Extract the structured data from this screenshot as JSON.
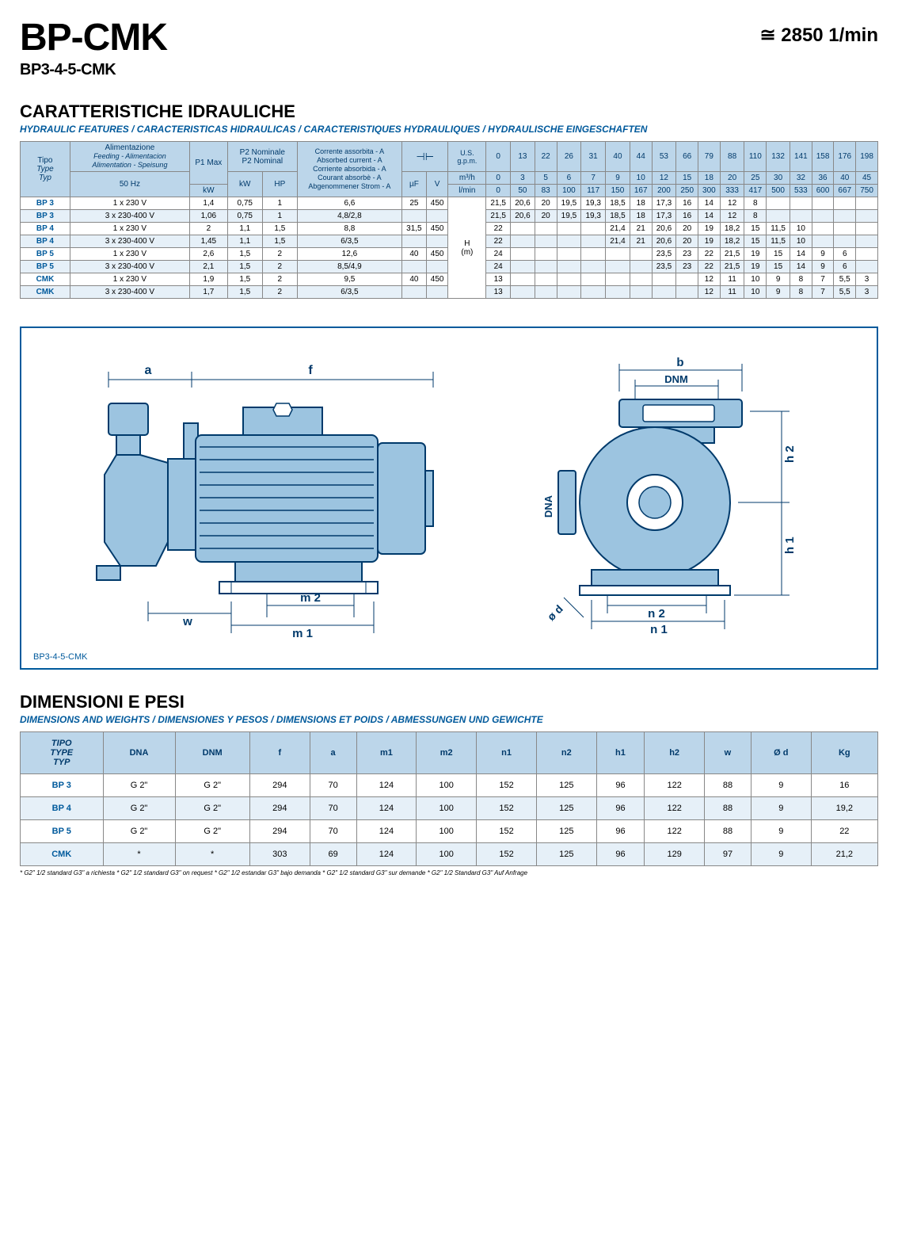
{
  "header": {
    "title": "BP-CMK",
    "subtitle": "BP3-4-5-CMK",
    "rpm": "≅ 2850 1/min"
  },
  "section1": {
    "title": "CARATTERISTICHE IDRAULICHE",
    "subtitle": "HYDRAULIC FEATURES / CARACTERISTICAS HIDRAULICAS / CARACTERISTIQUES HYDRAULIQUES / HYDRAULISCHE EINGESCHAFTEN"
  },
  "hydraulic": {
    "header_labels": {
      "tipo": "Tipo",
      "type_it": "Type",
      "typ": "Typ",
      "alim": "Alimentazione",
      "alim_lines": "Feeding - Alimentacion\nAlimentation - Speisung",
      "hz": "50 Hz",
      "p1max": "P1 Max",
      "p2nom": "P2 Nominale",
      "p2nom2": "P2 Nominal",
      "kw": "kW",
      "kw2": "kW",
      "hp": "HP",
      "current": "Corrente assorbita - A\nAbsorbed current - A\nCorriente absorbida - A\nCourant absorbè - A\nAbgenommener Strom - A",
      "uf": "µF",
      "v": "V",
      "cap_sym": "⊣⊢",
      "usgpm": "U.S. g.p.m.",
      "m3h": "m³/h",
      "lmin": "l/min",
      "h": "H\n(m)"
    },
    "flow_usgpm": [
      "0",
      "13",
      "22",
      "26",
      "31",
      "40",
      "44",
      "53",
      "66",
      "79",
      "88",
      "110",
      "132",
      "141",
      "158",
      "176",
      "198"
    ],
    "flow_m3h": [
      "0",
      "3",
      "5",
      "6",
      "7",
      "9",
      "10",
      "12",
      "15",
      "18",
      "20",
      "25",
      "30",
      "32",
      "36",
      "40",
      "45"
    ],
    "flow_lmin": [
      "0",
      "50",
      "83",
      "100",
      "117",
      "150",
      "167",
      "200",
      "250",
      "300",
      "333",
      "417",
      "500",
      "533",
      "600",
      "667",
      "750"
    ],
    "rows": [
      {
        "type": "BP 3",
        "feed": "1 x 230 V",
        "p1": "1,4",
        "kw": "0,75",
        "hp": "1",
        "a": "6,6",
        "uf": "25",
        "v": "450",
        "h": [
          "21,5",
          "20,6",
          "20",
          "19,5",
          "19,3",
          "18,5",
          "18",
          "17,3",
          "16",
          "14",
          "12",
          "8",
          "",
          "",
          "",
          "",
          ""
        ]
      },
      {
        "type": "BP 3",
        "feed": "3 x 230-400 V",
        "p1": "1,06",
        "kw": "0,75",
        "hp": "1",
        "a": "4,8/2,8",
        "uf": "",
        "v": "",
        "h": [
          "21,5",
          "20,6",
          "20",
          "19,5",
          "19,3",
          "18,5",
          "18",
          "17,3",
          "16",
          "14",
          "12",
          "8",
          "",
          "",
          "",
          "",
          ""
        ]
      },
      {
        "type": "BP 4",
        "feed": "1 x 230 V",
        "p1": "2",
        "kw": "1,1",
        "hp": "1,5",
        "a": "8,8",
        "uf": "31,5",
        "v": "450",
        "h": [
          "22",
          "",
          "",
          "",
          "",
          "21,4",
          "21",
          "20,6",
          "20",
          "19",
          "18,2",
          "15",
          "11,5",
          "10",
          "",
          "",
          ""
        ]
      },
      {
        "type": "BP 4",
        "feed": "3 x 230-400 V",
        "p1": "1,45",
        "kw": "1,1",
        "hp": "1,5",
        "a": "6/3,5",
        "uf": "",
        "v": "",
        "h": [
          "22",
          "",
          "",
          "",
          "",
          "21,4",
          "21",
          "20,6",
          "20",
          "19",
          "18,2",
          "15",
          "11,5",
          "10",
          "",
          "",
          ""
        ]
      },
      {
        "type": "BP 5",
        "feed": "1 x 230 V",
        "p1": "2,6",
        "kw": "1,5",
        "hp": "2",
        "a": "12,6",
        "uf": "40",
        "v": "450",
        "h": [
          "24",
          "",
          "",
          "",
          "",
          "",
          "",
          "23,5",
          "23",
          "22",
          "21,5",
          "19",
          "15",
          "14",
          "9",
          "6",
          ""
        ]
      },
      {
        "type": "BP 5",
        "feed": "3 x 230-400 V",
        "p1": "2,1",
        "kw": "1,5",
        "hp": "2",
        "a": "8,5/4,9",
        "uf": "",
        "v": "",
        "h": [
          "24",
          "",
          "",
          "",
          "",
          "",
          "",
          "23,5",
          "23",
          "22",
          "21,5",
          "19",
          "15",
          "14",
          "9",
          "6",
          ""
        ]
      },
      {
        "type": "CMK",
        "feed": "1 x 230 V",
        "p1": "1,9",
        "kw": "1,5",
        "hp": "2",
        "a": "9,5",
        "uf": "40",
        "v": "450",
        "h": [
          "13",
          "",
          "",
          "",
          "",
          "",
          "",
          "",
          "",
          "12",
          "11",
          "10",
          "9",
          "8",
          "7",
          "5,5",
          "3"
        ]
      },
      {
        "type": "CMK",
        "feed": "3 x 230-400 V",
        "p1": "1,7",
        "kw": "1,5",
        "hp": "2",
        "a": "6/3,5",
        "uf": "",
        "v": "",
        "h": [
          "13",
          "",
          "",
          "",
          "",
          "",
          "",
          "",
          "",
          "12",
          "11",
          "10",
          "9",
          "8",
          "7",
          "5,5",
          "3"
        ]
      }
    ]
  },
  "diagram": {
    "caption": "BP3-4-5-CMK",
    "labels": {
      "a": "a",
      "f": "f",
      "w": "w",
      "m1": "m 1",
      "m2": "m 2",
      "b": "b",
      "dnm": "DNM",
      "dna": "DNA",
      "h1": "h 1",
      "h2": "h 2",
      "n1": "n 1",
      "n2": "n 2",
      "od": "ø d"
    },
    "colors": {
      "stroke": "#003a6b",
      "fill": "#9cc4e0"
    }
  },
  "section2": {
    "title": "DIMENSIONI E PESI",
    "subtitle": "DIMENSIONS AND WEIGHTS / DIMENSIONES Y PESOS / DIMENSIONS ET POIDS / ABMESSUNGEN UND GEWICHTE"
  },
  "dimensions": {
    "columns": [
      "TIPO\nTYPE\nTYP",
      "DNA",
      "DNM",
      "f",
      "a",
      "m1",
      "m2",
      "n1",
      "n2",
      "h1",
      "h2",
      "w",
      "Ø d",
      "Kg"
    ],
    "rows": [
      [
        "BP 3",
        "G 2\"",
        "G 2\"",
        "294",
        "70",
        "124",
        "100",
        "152",
        "125",
        "96",
        "122",
        "88",
        "9",
        "16"
      ],
      [
        "BP 4",
        "G 2\"",
        "G 2\"",
        "294",
        "70",
        "124",
        "100",
        "152",
        "125",
        "96",
        "122",
        "88",
        "9",
        "19,2"
      ],
      [
        "BP 5",
        "G 2\"",
        "G 2\"",
        "294",
        "70",
        "124",
        "100",
        "152",
        "125",
        "96",
        "122",
        "88",
        "9",
        "22"
      ],
      [
        "CMK",
        "*",
        "*",
        "303",
        "69",
        "124",
        "100",
        "152",
        "125",
        "96",
        "129",
        "97",
        "9",
        "21,2"
      ]
    ]
  },
  "footnote": "* G2\" 1/2 standard  G3\" a richiesta   * G2\" 1/2 standard  G3\" on request   * G2\" 1/2 estandar  G3\" bajo demanda   * G2\" 1/2 standard  G3\" sur demande   * G2\" 1/2 Standard  G3\" Auf Anfrage"
}
